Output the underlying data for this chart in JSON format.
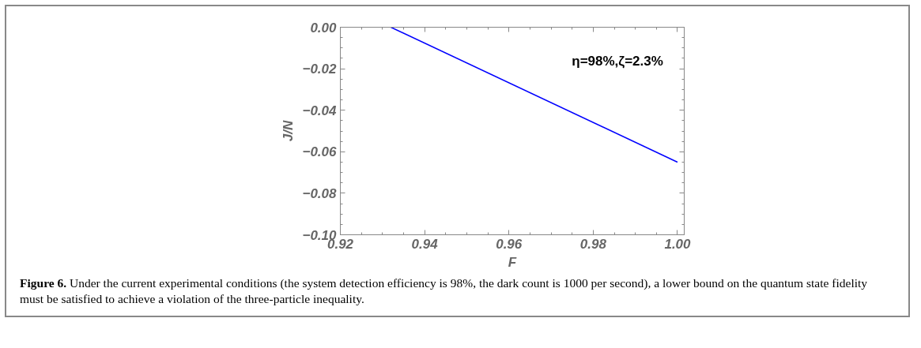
{
  "chart_data": {
    "type": "line",
    "xlabel": "F",
    "ylabel": "J/N",
    "x": [
      0.932,
      1.0
    ],
    "series": [
      {
        "color": "#0000ff",
        "values": [
          0.0,
          -0.065
        ]
      }
    ],
    "xlim": [
      0.92,
      1.0016
    ],
    "ylim": [
      -0.1,
      0.0
    ],
    "xticks": [
      {
        "value": 0.92,
        "label": "0.92"
      },
      {
        "value": 0.94,
        "label": "0.94"
      },
      {
        "value": 0.96,
        "label": "0.96"
      },
      {
        "value": 0.98,
        "label": "0.98"
      },
      {
        "value": 1.0,
        "label": "1.00"
      }
    ],
    "yticks": [
      {
        "value": -0.1,
        "label": "−0.10"
      },
      {
        "value": -0.08,
        "label": "−0.08"
      },
      {
        "value": -0.06,
        "label": "−0.06"
      },
      {
        "value": -0.04,
        "label": "−0.04"
      },
      {
        "value": -0.02,
        "label": "−0.02"
      },
      {
        "value": 0.0,
        "label": "0.00"
      }
    ],
    "grid": false,
    "marker": "none",
    "line_style": "solid",
    "annotations": [
      "η=98%,ζ=2.3%",
      "Figure 6.  Under the current experimental conditions (the system detection efficiency is 98%, the dark count is 1000 per second), a lower bound on the quantum state fidelity must be satisfied to achieve a violation of the three-particle inequality."
    ]
  }
}
